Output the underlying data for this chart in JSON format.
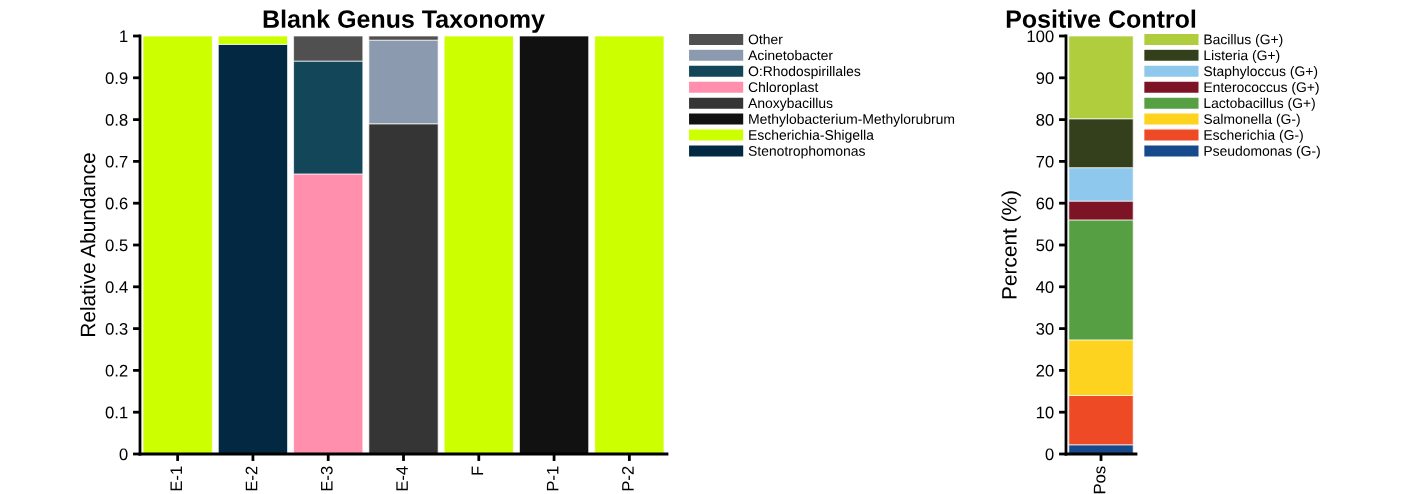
{
  "chart_data": [
    {
      "type": "bar",
      "title": "Blank Genus Taxonomy",
      "ylabel": "Relative Abundance",
      "stacked": true,
      "legend": "right",
      "grid": false,
      "categories": [
        "E-1",
        "E-2",
        "E-3",
        "E-4",
        "F",
        "P-1",
        "P-2"
      ],
      "ylim": [
        0,
        1
      ],
      "yticks": [
        0,
        0.1,
        0.2,
        0.3,
        0.4,
        0.5,
        0.6,
        0.7,
        0.8,
        0.9,
        1
      ],
      "series": [
        {
          "name": "Stenotrophomonas",
          "color": "#022842",
          "values": [
            null,
            0.98,
            null,
            null,
            null,
            null,
            null
          ]
        },
        {
          "name": "Escherichia-Shigella",
          "color": "#ccff00",
          "values": [
            1,
            0.02,
            null,
            null,
            1,
            null,
            1
          ]
        },
        {
          "name": "Methylobacterium-Methylorubrum",
          "color": "#111111",
          "values": [
            null,
            null,
            null,
            null,
            null,
            1,
            null
          ]
        },
        {
          "name": "Anoxybacillus",
          "color": "#353535",
          "values": [
            null,
            null,
            null,
            0.79,
            null,
            null,
            null
          ]
        },
        {
          "name": "Chloroplast",
          "color": "#ff8fac",
          "values": [
            null,
            null,
            0.67,
            null,
            null,
            null,
            null
          ]
        },
        {
          "name": "O:Rhodospirillales",
          "color": "#14465a",
          "values": [
            null,
            null,
            0.27,
            null,
            null,
            null,
            null
          ]
        },
        {
          "name": "Acinetobacter",
          "color": "#8c9ab0",
          "values": [
            null,
            null,
            null,
            0.2,
            null,
            null,
            null
          ]
        },
        {
          "name": "Other",
          "color": "#505050",
          "values": [
            null,
            null,
            0.06,
            0.01,
            null,
            null,
            null
          ]
        }
      ]
    },
    {
      "type": "bar",
      "title": "Positive Control",
      "ylabel": "Percent (%)",
      "stacked": true,
      "legend": "right",
      "grid": false,
      "categories": [
        "Pos"
      ],
      "ylim": [
        0,
        100
      ],
      "yticks": [
        0,
        10,
        20,
        30,
        40,
        50,
        60,
        70,
        80,
        90,
        100
      ],
      "series": [
        {
          "name": "Pseudomonas (G-)",
          "color": "#164a8a",
          "values": [
            2.2
          ]
        },
        {
          "name": "Escherichia (G-)",
          "color": "#ee4a26",
          "values": [
            11.8
          ]
        },
        {
          "name": "Salmonella (G-)",
          "color": "#fdd31f",
          "values": [
            13.3
          ]
        },
        {
          "name": "Lactobacillus (G+)",
          "color": "#56a043",
          "values": [
            28.7
          ]
        },
        {
          "name": "Enterococcus (G+)",
          "color": "#7c1426",
          "values": [
            4.5
          ]
        },
        {
          "name": "Staphyloccus (G+)",
          "color": "#8ec8ec",
          "values": [
            8.0
          ]
        },
        {
          "name": "Listeria (G+)",
          "color": "#343f1c",
          "values": [
            11.7
          ]
        },
        {
          "name": "Bacillus (G+)",
          "color": "#afcd3c",
          "values": [
            19.8
          ]
        }
      ]
    }
  ]
}
